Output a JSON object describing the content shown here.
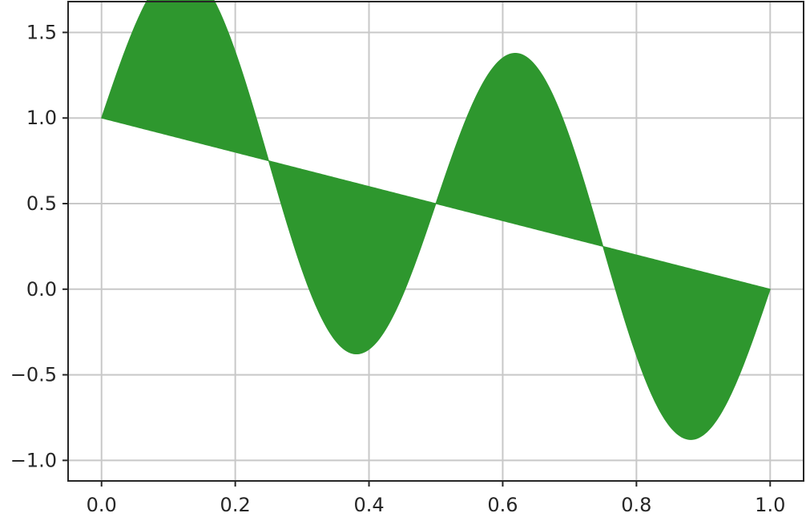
{
  "chart_data": {
    "type": "area",
    "title": "",
    "xlabel": "",
    "ylabel": "",
    "xlim": [
      -0.05,
      1.05
    ],
    "ylim": [
      -1.12,
      1.68
    ],
    "grid": true,
    "x_ticks": [
      0.0,
      0.2,
      0.4,
      0.6,
      0.8,
      1.0
    ],
    "x_tick_labels": [
      "0.0",
      "0.2",
      "0.4",
      "0.6",
      "0.8",
      "1.0"
    ],
    "y_ticks": [
      -1.0,
      -0.5,
      0.0,
      0.5,
      1.0,
      1.5
    ],
    "y_tick_labels": [
      "−1.0",
      "−0.5",
      "0.0",
      "0.5",
      "1.0",
      "1.5"
    ],
    "series": [
      {
        "role": "upper",
        "formula": "y = 1 - x + sin(4πx)",
        "x": [
          0.0,
          0.05,
          0.1,
          0.15,
          0.2,
          0.25,
          0.3,
          0.35,
          0.4,
          0.45,
          0.5,
          0.55,
          0.6,
          0.65,
          0.7,
          0.75,
          0.8,
          0.85,
          0.9,
          0.95,
          1.0
        ],
        "values": [
          1.0,
          1.538,
          1.851,
          1.801,
          1.388,
          0.75,
          0.112,
          -0.301,
          -0.351,
          -0.038,
          0.5,
          1.038,
          1.351,
          1.301,
          0.888,
          0.25,
          -0.388,
          -0.801,
          -0.851,
          -0.538,
          0.0
        ]
      },
      {
        "role": "lower",
        "formula": "y = 1 - x",
        "x": [
          0.0,
          1.0
        ],
        "values": [
          1.0,
          0.0
        ]
      }
    ],
    "fill_color": "#2e972e",
    "grid_color": "#c8c8c8",
    "axis_color": "#262626"
  }
}
